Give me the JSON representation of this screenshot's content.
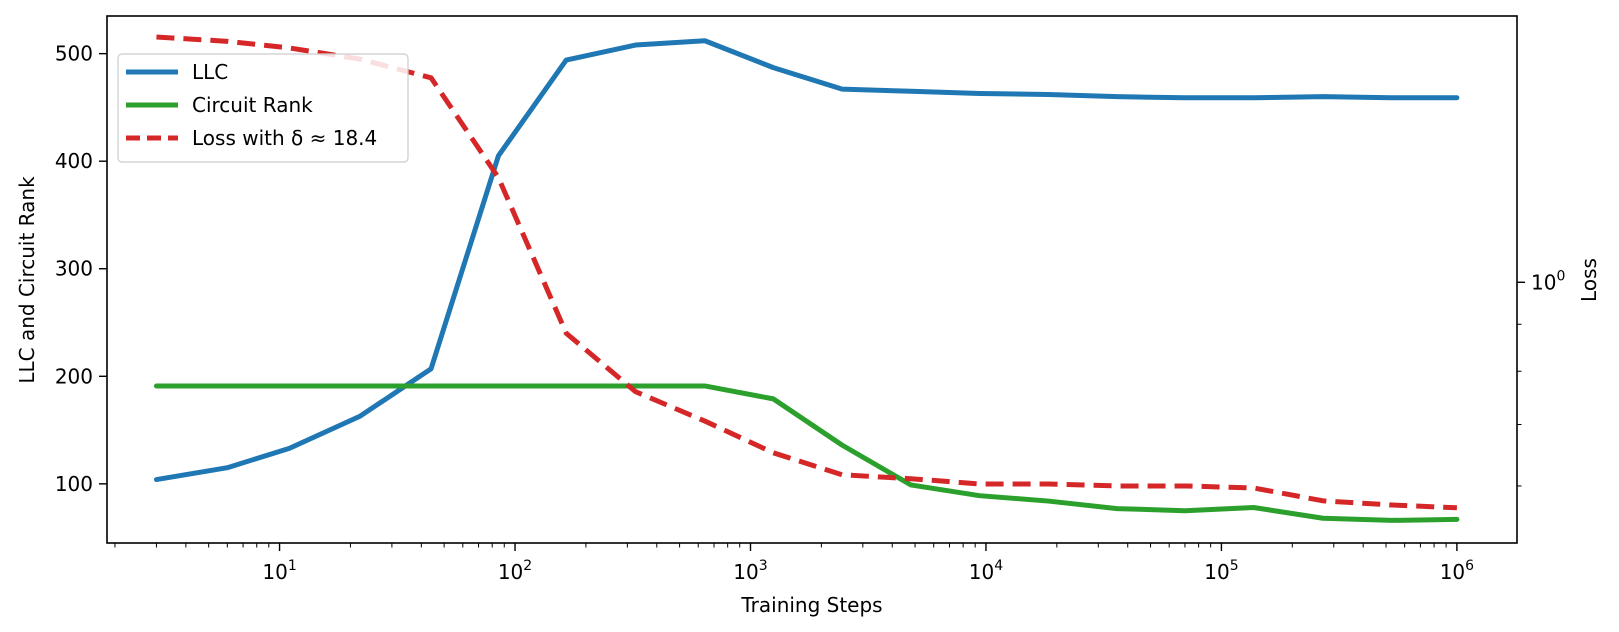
{
  "chart_data": {
    "type": "line",
    "xscale": "log",
    "xlabel": "Training Steps",
    "ylabel": "LLC and Circuit Rank",
    "y2label": "Loss",
    "y2scale": "log",
    "xlim": [
      1.85,
      1800000
    ],
    "ylim": [
      45,
      535
    ],
    "y2lim": [
      0.52,
      1.95
    ],
    "xticks": [
      {
        "value": 10,
        "label": "10",
        "exp": "1"
      },
      {
        "value": 100,
        "label": "10",
        "exp": "2"
      },
      {
        "value": 1000,
        "label": "10",
        "exp": "3"
      },
      {
        "value": 10000,
        "label": "10",
        "exp": "4"
      },
      {
        "value": 100000,
        "label": "10",
        "exp": "5"
      },
      {
        "value": 1000000,
        "label": "10",
        "exp": "6"
      }
    ],
    "yticks": [
      {
        "value": 100,
        "label": "100"
      },
      {
        "value": 200,
        "label": "200"
      },
      {
        "value": 300,
        "label": "300"
      },
      {
        "value": 400,
        "label": "400"
      },
      {
        "value": 500,
        "label": "500"
      }
    ],
    "y2ticks": [
      {
        "value": 1,
        "label": "10",
        "exp": "0"
      }
    ],
    "legend": {
      "position": "upper-left",
      "entries": [
        {
          "label": "LLC",
          "color": "#1f77b4",
          "style": "solid"
        },
        {
          "label": "Circuit Rank",
          "color": "#2ca02c",
          "style": "solid"
        },
        {
          "label": "Loss with δ ≈ 18.4",
          "color": "#d62728",
          "style": "dashed"
        }
      ]
    },
    "x": [
      3,
      6,
      11,
      22,
      44,
      85,
      165,
      325,
      640,
      1250,
      2450,
      4800,
      9400,
      18400,
      36000,
      70000,
      137000,
      270000,
      530000,
      1000000
    ],
    "series": [
      {
        "name": "LLC",
        "axis": "left",
        "color": "#1f77b4",
        "dash": "solid",
        "values": [
          104,
          115,
          133,
          163,
          207,
          405,
          494,
          508,
          512,
          487,
          467,
          465,
          463,
          462,
          460,
          459,
          459,
          460,
          459,
          459
        ]
      },
      {
        "name": "Circuit Rank",
        "axis": "left",
        "color": "#2ca02c",
        "dash": "solid",
        "values": [
          191,
          191,
          191,
          191,
          191,
          191,
          191,
          191,
          191,
          179,
          136,
          99,
          89,
          84,
          77,
          75,
          78,
          68,
          66,
          67
        ]
      },
      {
        "name": "Loss with δ ≈ 18.4",
        "axis": "right",
        "color": "#d62728",
        "dash": "dashed",
        "values": [
          1.85,
          1.83,
          1.8,
          1.75,
          1.67,
          1.3,
          0.88,
          0.76,
          0.706,
          0.652,
          0.617,
          0.611,
          0.603,
          0.603,
          0.6,
          0.6,
          0.597,
          0.578,
          0.572,
          0.568
        ]
      }
    ]
  }
}
